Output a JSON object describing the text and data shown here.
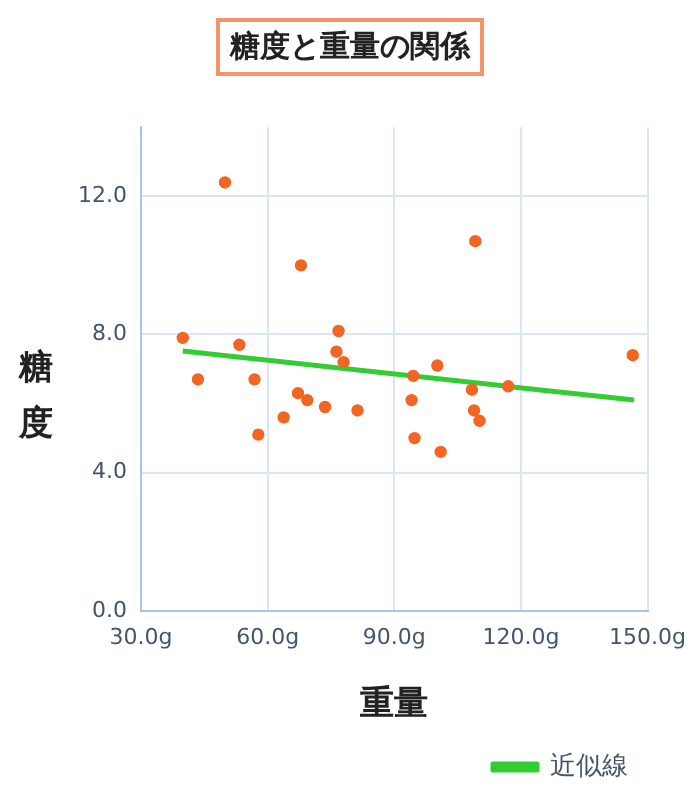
{
  "chart_data": {
    "type": "scatter",
    "title": "糖度と重量の関係",
    "xlabel": "重量",
    "ylabel": "糖度",
    "xlim": [
      30,
      150
    ],
    "ylim": [
      0,
      14
    ],
    "xticks": [
      {
        "value": 30,
        "label": "30.0g"
      },
      {
        "value": 60,
        "label": "60.0g"
      },
      {
        "value": 90,
        "label": "90.0g"
      },
      {
        "value": 120,
        "label": "120.0g"
      },
      {
        "value": 150,
        "label": "150.0g"
      }
    ],
    "yticks": [
      {
        "value": 0,
        "label": "0.0"
      },
      {
        "value": 4,
        "label": "4.0"
      },
      {
        "value": 8,
        "label": "8.0"
      },
      {
        "value": 12,
        "label": "12.0"
      }
    ],
    "grid": true,
    "legend": "bottom right",
    "marker": "circle",
    "series": [
      {
        "type": "scatter",
        "color": "#f26522",
        "x": [
          39.9,
          43.5,
          49.9,
          53.3,
          56.9,
          57.8,
          63.8,
          67.2,
          67.9,
          69.4,
          73.6,
          76.3,
          76.8,
          78.0,
          81.3,
          94.1,
          94.5,
          94.8,
          100.2,
          101.0,
          108.4,
          108.9,
          109.2,
          110.2,
          117.0,
          146.5
        ],
        "values": [
          7.9,
          6.7,
          12.4,
          7.7,
          6.7,
          5.1,
          5.6,
          6.3,
          10.0,
          6.1,
          5.9,
          7.5,
          8.1,
          7.2,
          5.8,
          6.1,
          6.8,
          5.0,
          7.1,
          4.6,
          6.4,
          5.8,
          10.7,
          5.5,
          6.5,
          7.4
        ]
      },
      {
        "type": "line",
        "name": "近似線",
        "color": "#33cc33",
        "marker": "none",
        "x": [
          39.9,
          146.8
        ],
        "values": [
          7.52,
          6.1
        ]
      }
    ]
  }
}
